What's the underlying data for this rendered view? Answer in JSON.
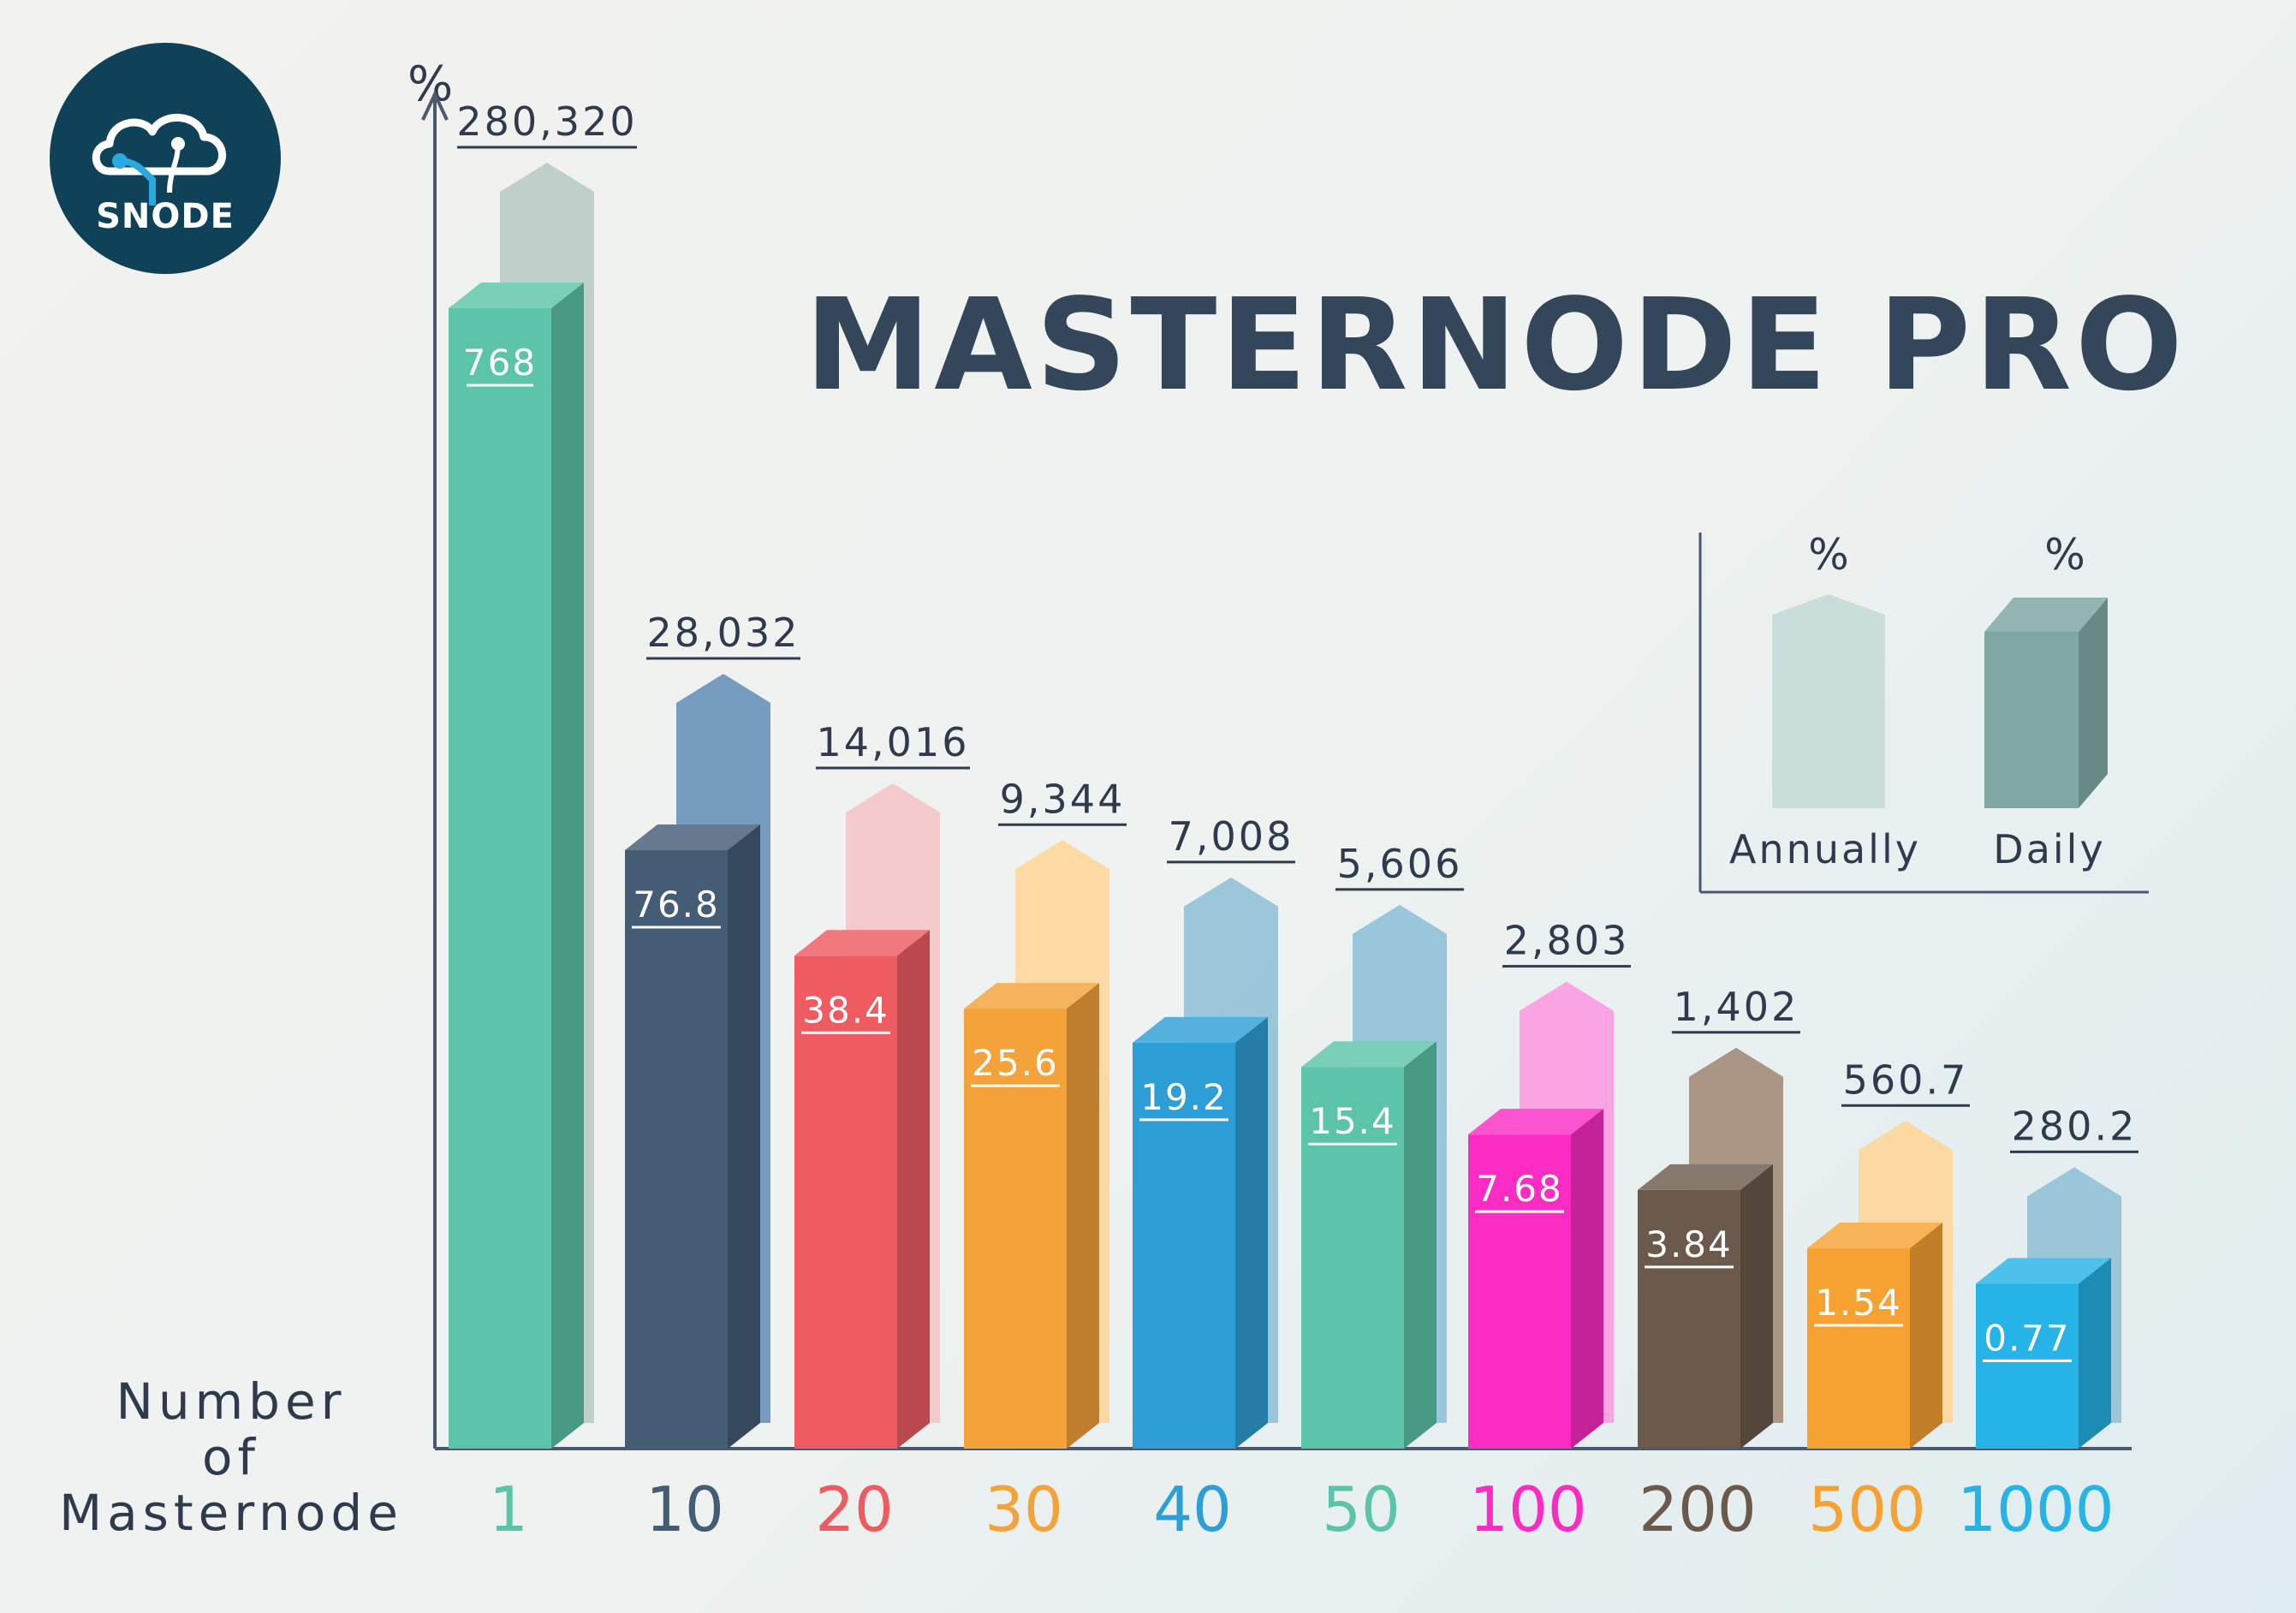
{
  "title": "MASTERNODE PROFIT",
  "logo": {
    "text": "SNODE"
  },
  "colors": {
    "text_dark": "#2f3b4d",
    "legend_annual": "#c9ddda",
    "legend_daily": "#7fa8a3"
  },
  "legend": {
    "annual_unit": "%",
    "daily_unit": "%",
    "annual_label": "Annually",
    "daily_label": "Daily"
  },
  "chart_data": {
    "type": "bar",
    "title": "MASTERNODE PROFIT",
    "ylabel": "%",
    "xlabel_lines": [
      "Number",
      "of",
      "Masternode"
    ],
    "categories": [
      "1",
      "10",
      "20",
      "30",
      "40",
      "50",
      "100",
      "200",
      "500",
      "1000"
    ],
    "category_colors": [
      "#5cc4a8",
      "#455c75",
      "#ee5c62",
      "#f4a23a",
      "#2e9fd6",
      "#5cc4a8",
      "#fa2cc4",
      "#6b5a4c",
      "#f6a233",
      "#25b3e8"
    ],
    "series": [
      {
        "name": "Annually",
        "values": [
          280320,
          28032,
          14016,
          9344,
          7008,
          5606,
          2803,
          1402,
          560.7,
          280.2
        ],
        "labels": [
          "280,320",
          "28,032",
          "14,016",
          "9,344",
          "7,008",
          "5,606",
          "2,803",
          "1,402",
          "560.7",
          "280.2"
        ],
        "colors": [
          "#bccdc7",
          "#6f98bd",
          "#f4c7c9",
          "#fdd79e",
          "#97c3d8",
          "#95c3d8",
          "#fc9fe1",
          "#a89080",
          "#fdd79e",
          "#97c3d8"
        ]
      },
      {
        "name": "Daily",
        "values": [
          768,
          76.8,
          38.4,
          25.6,
          19.2,
          15.4,
          7.68,
          3.84,
          1.54,
          0.77
        ],
        "labels": [
          "768",
          "76.8",
          "38.4",
          "25.6",
          "19.2",
          "15.4",
          "7.68",
          "3.84",
          "1.54",
          "0.77"
        ],
        "colors": [
          "#5cc4a8",
          "#455c75",
          "#ee5c62",
          "#f4a23a",
          "#2e9fd6",
          "#5cc4a8",
          "#fa2cc4",
          "#6b5a4c",
          "#f6a233",
          "#25b3e8"
        ]
      }
    ],
    "grid": false,
    "legend_position": "top-right"
  }
}
